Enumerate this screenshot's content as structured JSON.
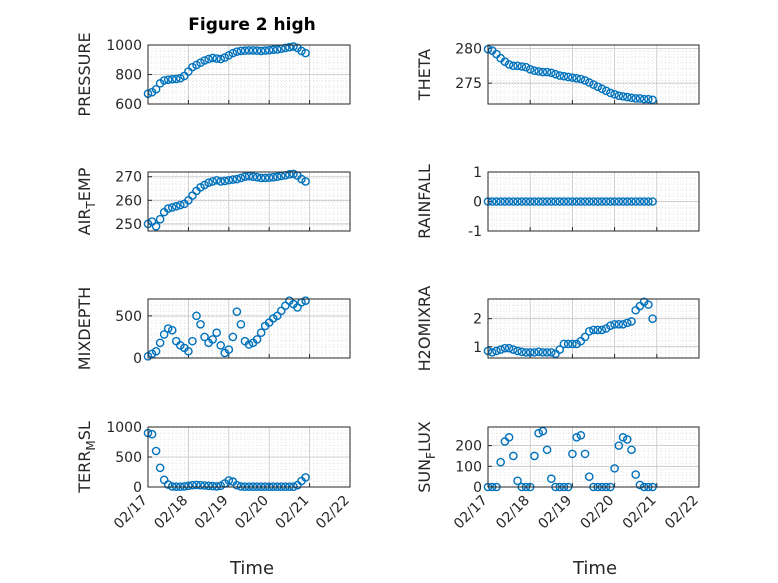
{
  "figure": {
    "title": "Figure 2 high",
    "xlabel": "Time",
    "x_ticks": [
      "02/17",
      "02/18",
      "02/19",
      "02/20",
      "02/21",
      "02/22"
    ],
    "marker_color": "#0072BD"
  },
  "chart_data": [
    {
      "type": "scatter",
      "ylabel": "PRESSURE",
      "ylim": [
        600,
        1000
      ],
      "yticks": [
        "600",
        "800",
        "1000"
      ],
      "xlim": [
        0,
        5
      ],
      "series": [
        {
          "x": [
            0.0,
            0.1,
            0.2,
            0.3,
            0.4,
            0.5,
            0.6,
            0.7,
            0.8,
            0.9,
            1.0,
            1.1,
            1.2,
            1.3,
            1.4,
            1.5,
            1.6,
            1.7,
            1.8,
            1.9,
            2.0,
            2.1,
            2.2,
            2.3,
            2.4,
            2.5,
            2.6,
            2.7,
            2.8,
            2.9,
            3.0,
            3.1,
            3.2,
            3.3,
            3.4,
            3.5,
            3.6,
            3.7,
            3.8,
            3.9
          ],
          "y": [
            670,
            680,
            700,
            740,
            760,
            765,
            768,
            770,
            775,
            790,
            820,
            850,
            865,
            880,
            895,
            905,
            912,
            908,
            905,
            915,
            930,
            945,
            955,
            960,
            962,
            963,
            963,
            962,
            960,
            962,
            965,
            968,
            970,
            975,
            980,
            985,
            990,
            980,
            960,
            945
          ]
        }
      ]
    },
    {
      "type": "scatter",
      "ylabel": "THETA",
      "ylim": [
        272,
        280.5
      ],
      "yticks": [
        "275",
        "280"
      ],
      "xlim": [
        0,
        5
      ],
      "series": [
        {
          "x": [
            0.0,
            0.1,
            0.2,
            0.3,
            0.4,
            0.5,
            0.6,
            0.7,
            0.8,
            0.9,
            1.0,
            1.1,
            1.2,
            1.3,
            1.4,
            1.5,
            1.6,
            1.7,
            1.8,
            1.9,
            2.0,
            2.1,
            2.2,
            2.3,
            2.4,
            2.5,
            2.6,
            2.7,
            2.8,
            2.9,
            3.0,
            3.1,
            3.2,
            3.3,
            3.4,
            3.5,
            3.6,
            3.7,
            3.8,
            3.9
          ],
          "y": [
            279.9,
            279.7,
            279.2,
            278.6,
            278.1,
            277.7,
            277.5,
            277.5,
            277.4,
            277.3,
            277.0,
            276.8,
            276.7,
            276.6,
            276.6,
            276.5,
            276.3,
            276.1,
            276.0,
            275.9,
            275.8,
            275.7,
            275.6,
            275.4,
            275.1,
            274.8,
            274.5,
            274.2,
            273.9,
            273.6,
            273.4,
            273.2,
            273.1,
            273.0,
            272.9,
            272.8,
            272.8,
            272.7,
            272.7,
            272.6
          ]
        }
      ]
    },
    {
      "type": "scatter",
      "ylabel": "AIR",
      "ylabel_sub": "T",
      "ylabel_suffix": "EMP",
      "ylim": [
        247,
        272
      ],
      "yticks": [
        "250",
        "260",
        "270"
      ],
      "xlim": [
        0,
        5
      ],
      "series": [
        {
          "x": [
            0.0,
            0.1,
            0.2,
            0.3,
            0.4,
            0.5,
            0.6,
            0.7,
            0.8,
            0.9,
            1.0,
            1.1,
            1.2,
            1.3,
            1.4,
            1.5,
            1.6,
            1.7,
            1.8,
            1.9,
            2.0,
            2.1,
            2.2,
            2.3,
            2.4,
            2.5,
            2.6,
            2.7,
            2.8,
            2.9,
            3.0,
            3.1,
            3.2,
            3.3,
            3.4,
            3.5,
            3.6,
            3.7,
            3.8,
            3.9
          ],
          "y": [
            250,
            251,
            249,
            252,
            255,
            256.5,
            257,
            257.5,
            258,
            258.5,
            260,
            262,
            264,
            265.5,
            266.5,
            267.5,
            268,
            268.5,
            268,
            268.2,
            268.5,
            268.8,
            269,
            269.5,
            270,
            270.2,
            270,
            269.8,
            269.5,
            269.5,
            269.6,
            269.8,
            270,
            270.3,
            270.6,
            271,
            271.2,
            270.5,
            269,
            268
          ]
        }
      ]
    },
    {
      "type": "scatter",
      "ylabel": "RAINFALL",
      "ylim": [
        -1,
        1
      ],
      "yticks": [
        "-1",
        "0",
        "1"
      ],
      "xlim": [
        0,
        5
      ],
      "series": [
        {
          "x": [
            0.0,
            0.1,
            0.2,
            0.3,
            0.4,
            0.5,
            0.6,
            0.7,
            0.8,
            0.9,
            1.0,
            1.1,
            1.2,
            1.3,
            1.4,
            1.5,
            1.6,
            1.7,
            1.8,
            1.9,
            2.0,
            2.1,
            2.2,
            2.3,
            2.4,
            2.5,
            2.6,
            2.7,
            2.8,
            2.9,
            3.0,
            3.1,
            3.2,
            3.3,
            3.4,
            3.5,
            3.6,
            3.7,
            3.8,
            3.9
          ],
          "y": [
            0,
            0,
            0,
            0,
            0,
            0,
            0,
            0,
            0,
            0,
            0,
            0,
            0,
            0,
            0,
            0,
            0,
            0,
            0,
            0,
            0,
            0,
            0,
            0,
            0,
            0,
            0,
            0,
            0,
            0,
            0,
            0,
            0,
            0,
            0,
            0,
            0,
            0,
            0,
            0
          ]
        }
      ]
    },
    {
      "type": "scatter",
      "ylabel": "MIXDEPTH",
      "ylim": [
        0,
        700
      ],
      "yticks": [
        "0",
        "500"
      ],
      "xlim": [
        0,
        5
      ],
      "series": [
        {
          "x": [
            0.0,
            0.1,
            0.2,
            0.3,
            0.4,
            0.5,
            0.6,
            0.7,
            0.8,
            0.9,
            1.0,
            1.1,
            1.2,
            1.3,
            1.4,
            1.5,
            1.6,
            1.7,
            1.8,
            1.9,
            2.0,
            2.1,
            2.2,
            2.3,
            2.4,
            2.5,
            2.6,
            2.7,
            2.8,
            2.9,
            3.0,
            3.1,
            3.2,
            3.3,
            3.4,
            3.5,
            3.6,
            3.7,
            3.8,
            3.9
          ],
          "y": [
            20,
            50,
            80,
            180,
            280,
            350,
            330,
            200,
            150,
            120,
            80,
            200,
            500,
            400,
            250,
            180,
            220,
            300,
            150,
            60,
            100,
            250,
            550,
            400,
            200,
            160,
            180,
            220,
            300,
            380,
            420,
            470,
            500,
            560,
            620,
            680,
            640,
            600,
            660,
            680
          ]
        }
      ]
    },
    {
      "type": "scatter",
      "ylabel": "H2OMIXRA",
      "ylim": [
        0.6,
        2.7
      ],
      "yticks": [
        "1",
        "2"
      ],
      "xlim": [
        0,
        5
      ],
      "series": [
        {
          "x": [
            0.0,
            0.1,
            0.2,
            0.3,
            0.4,
            0.5,
            0.6,
            0.7,
            0.8,
            0.9,
            1.0,
            1.1,
            1.2,
            1.3,
            1.4,
            1.5,
            1.6,
            1.7,
            1.8,
            1.9,
            2.0,
            2.1,
            2.2,
            2.3,
            2.4,
            2.5,
            2.6,
            2.7,
            2.8,
            2.9,
            3.0,
            3.1,
            3.2,
            3.3,
            3.4,
            3.5,
            3.6,
            3.7,
            3.8,
            3.9
          ],
          "y": [
            0.85,
            0.8,
            0.85,
            0.9,
            0.95,
            0.95,
            0.9,
            0.85,
            0.82,
            0.8,
            0.8,
            0.8,
            0.82,
            0.8,
            0.8,
            0.8,
            0.75,
            0.9,
            1.1,
            1.1,
            1.1,
            1.1,
            1.2,
            1.35,
            1.55,
            1.6,
            1.6,
            1.6,
            1.65,
            1.75,
            1.8,
            1.8,
            1.8,
            1.85,
            1.9,
            2.3,
            2.45,
            2.6,
            2.5,
            2.0
          ]
        }
      ]
    },
    {
      "type": "scatter",
      "ylabel": "TERR",
      "ylabel_sub": "M",
      "ylabel_suffix": "SL",
      "ylim": [
        0,
        1000
      ],
      "yticks": [
        "0",
        "500",
        "1000"
      ],
      "xlim": [
        0,
        5
      ],
      "series": [
        {
          "x": [
            0.0,
            0.1,
            0.2,
            0.3,
            0.4,
            0.5,
            0.6,
            0.7,
            0.8,
            0.9,
            1.0,
            1.1,
            1.2,
            1.3,
            1.4,
            1.5,
            1.6,
            1.7,
            1.8,
            1.9,
            2.0,
            2.1,
            2.2,
            2.3,
            2.4,
            2.5,
            2.6,
            2.7,
            2.8,
            2.9,
            3.0,
            3.1,
            3.2,
            3.3,
            3.4,
            3.5,
            3.6,
            3.7,
            3.8,
            3.9
          ],
          "y": [
            900,
            880,
            600,
            320,
            120,
            40,
            10,
            5,
            5,
            10,
            20,
            30,
            35,
            30,
            25,
            20,
            15,
            10,
            20,
            60,
            110,
            90,
            30,
            10,
            5,
            5,
            5,
            5,
            5,
            5,
            5,
            5,
            5,
            5,
            5,
            5,
            5,
            30,
            100,
            160
          ]
        }
      ]
    },
    {
      "type": "scatter",
      "ylabel": "SUN",
      "ylabel_sub": "F",
      "ylabel_suffix": "LUX",
      "ylim": [
        0,
        290
      ],
      "yticks": [
        "0",
        "100",
        "200"
      ],
      "xlim": [
        0,
        5
      ],
      "series": [
        {
          "x": [
            0.0,
            0.1,
            0.2,
            0.3,
            0.4,
            0.5,
            0.6,
            0.7,
            0.8,
            0.9,
            1.0,
            1.1,
            1.2,
            1.3,
            1.4,
            1.5,
            1.6,
            1.7,
            1.8,
            1.9,
            2.0,
            2.1,
            2.2,
            2.3,
            2.4,
            2.5,
            2.6,
            2.7,
            2.8,
            2.9,
            3.0,
            3.1,
            3.2,
            3.3,
            3.4,
            3.5,
            3.6,
            3.7,
            3.8,
            3.9
          ],
          "y": [
            0,
            0,
            0,
            120,
            220,
            240,
            150,
            30,
            0,
            0,
            0,
            150,
            260,
            270,
            180,
            40,
            0,
            0,
            0,
            0,
            160,
            240,
            250,
            160,
            50,
            0,
            0,
            0,
            0,
            0,
            90,
            200,
            240,
            230,
            180,
            60,
            10,
            0,
            0,
            0
          ]
        }
      ]
    }
  ]
}
